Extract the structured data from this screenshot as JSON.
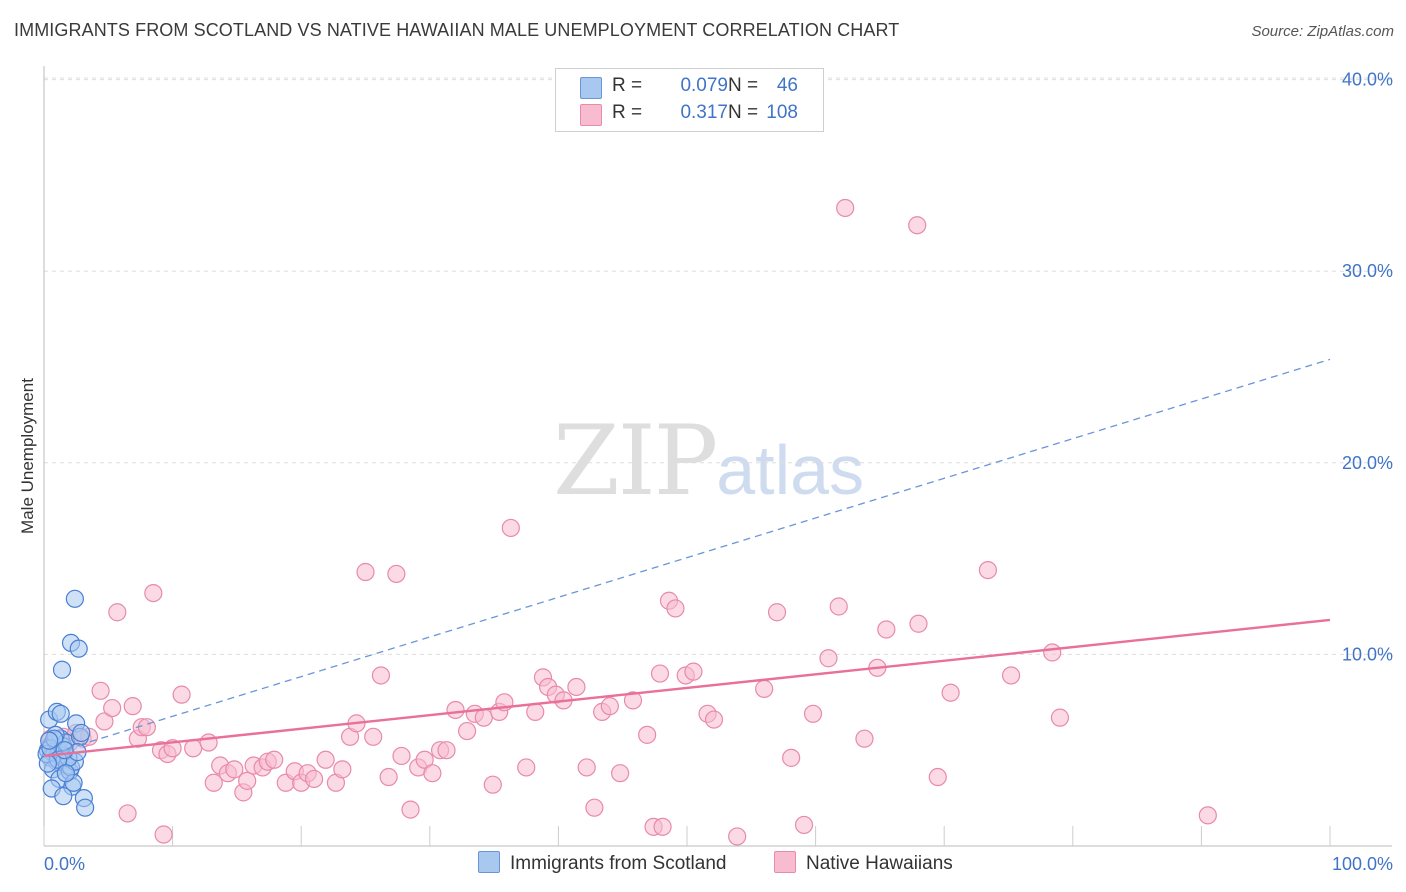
{
  "title": "IMMIGRANTS FROM SCOTLAND VS NATIVE HAWAIIAN MALE UNEMPLOYMENT CORRELATION CHART",
  "source": "Source: ZipAtlas.com",
  "watermark": {
    "zip": "ZIP",
    "atlas": "atlas"
  },
  "colors": {
    "blue_fill": "#a8c8f0",
    "blue_stroke": "#4a7fd4",
    "blue_line": "#6a95d8",
    "pink_fill": "#f7bcd0",
    "pink_stroke": "#e88aaa",
    "pink_line": "#e8709a",
    "axis_text": "#3f74c8",
    "grid": "#dddddd"
  },
  "legend": {
    "rows": [
      {
        "r_label": "R =",
        "r_value": "0.079",
        "n_label": "N =",
        "n_value": "46",
        "color": "#a8c8f0",
        "stroke": "#6a95d8"
      },
      {
        "r_label": "R =",
        "r_value": "0.317",
        "n_label": "N =",
        "n_value": "108",
        "color": "#f7bcd0",
        "stroke": "#e88aaa"
      }
    ]
  },
  "bottom_legend": [
    {
      "label": "Immigrants from Scotland",
      "color": "#a8c8f0",
      "stroke": "#6a95d8"
    },
    {
      "label": "Native Hawaiians",
      "color": "#f7bcd0",
      "stroke": "#e88aaa"
    }
  ],
  "chart_data": {
    "type": "scatter",
    "title": "IMMIGRANTS FROM SCOTLAND VS NATIVE HAWAIIAN MALE UNEMPLOYMENT CORRELATION CHART",
    "xlabel": "",
    "ylabel": "Male Unemployment",
    "xlim": [
      0,
      100
    ],
    "ylim": [
      0,
      42
    ],
    "x_tick_labels": [
      {
        "value": 0,
        "label": "0.0%"
      },
      {
        "value": 100,
        "label": "100.0%"
      }
    ],
    "y_tick_labels": [
      {
        "value": 10,
        "label": "10.0%"
      },
      {
        "value": 20,
        "label": "20.0%"
      },
      {
        "value": 30,
        "label": "30.0%"
      },
      {
        "value": 40,
        "label": "40.0%"
      }
    ],
    "x_minor_ticks": [
      0,
      10,
      20,
      30,
      40,
      50,
      60,
      70,
      80,
      90,
      100
    ],
    "grid": true,
    "series": [
      {
        "name": "Immigrants from Scotland",
        "R": 0.079,
        "N": 46,
        "trend": {
          "x": [
            0,
            100
          ],
          "y": [
            4.7,
            25.4
          ],
          "style": "dashed"
        },
        "points": [
          [
            0.3,
            5.0
          ],
          [
            0.5,
            4.6
          ],
          [
            0.6,
            5.3
          ],
          [
            0.8,
            4.8
          ],
          [
            0.9,
            5.5
          ],
          [
            1.0,
            4.4
          ],
          [
            1.1,
            5.1
          ],
          [
            1.2,
            4.9
          ],
          [
            1.3,
            5.6
          ],
          [
            1.4,
            4.7
          ],
          [
            0.4,
            6.6
          ],
          [
            0.7,
            4.0
          ],
          [
            1.0,
            7.0
          ],
          [
            1.2,
            3.5
          ],
          [
            1.5,
            5.2
          ],
          [
            1.6,
            4.5
          ],
          [
            1.7,
            5.4
          ],
          [
            1.8,
            4.2
          ],
          [
            2.0,
            3.9
          ],
          [
            2.1,
            4.1
          ],
          [
            2.2,
            3.1
          ],
          [
            2.4,
            4.4
          ],
          [
            2.5,
            6.4
          ],
          [
            0.6,
            3.0
          ],
          [
            1.5,
            2.6
          ],
          [
            2.8,
            5.7
          ],
          [
            1.4,
            9.2
          ],
          [
            2.1,
            10.6
          ],
          [
            2.7,
            10.3
          ],
          [
            2.4,
            12.9
          ],
          [
            3.1,
            2.5
          ],
          [
            3.2,
            2.0
          ],
          [
            0.2,
            4.8
          ],
          [
            0.9,
            5.8
          ],
          [
            1.9,
            4.6
          ],
          [
            2.3,
            3.3
          ],
          [
            0.5,
            5.1
          ],
          [
            1.1,
            4.5
          ],
          [
            0.3,
            4.3
          ],
          [
            0.8,
            5.6
          ],
          [
            1.3,
            6.9
          ],
          [
            1.7,
            3.8
          ],
          [
            2.6,
            4.9
          ],
          [
            0.4,
            5.5
          ],
          [
            1.6,
            5.0
          ],
          [
            2.9,
            5.9
          ]
        ]
      },
      {
        "name": "Native Hawaiians",
        "R": 0.317,
        "N": 108,
        "trend": {
          "x": [
            0,
            100
          ],
          "y": [
            4.7,
            11.8
          ],
          "style": "solid"
        },
        "points": [
          [
            0.5,
            5.6
          ],
          [
            1.0,
            5.0
          ],
          [
            1.5,
            5.7
          ],
          [
            2.0,
            5.4
          ],
          [
            2.5,
            5.9
          ],
          [
            3.0,
            5.6
          ],
          [
            3.5,
            5.7
          ],
          [
            4.4,
            8.1
          ],
          [
            4.7,
            6.5
          ],
          [
            5.3,
            7.2
          ],
          [
            5.7,
            12.2
          ],
          [
            6.5,
            1.7
          ],
          [
            6.9,
            7.3
          ],
          [
            7.3,
            5.6
          ],
          [
            7.6,
            6.2
          ],
          [
            8.0,
            6.2
          ],
          [
            8.5,
            13.2
          ],
          [
            9.1,
            5.0
          ],
          [
            9.6,
            4.8
          ],
          [
            10.0,
            5.1
          ],
          [
            10.7,
            7.9
          ],
          [
            11.6,
            5.1
          ],
          [
            12.8,
            5.4
          ],
          [
            13.2,
            3.3
          ],
          [
            13.7,
            4.2
          ],
          [
            14.3,
            3.8
          ],
          [
            15.5,
            2.8
          ],
          [
            15.8,
            3.4
          ],
          [
            16.3,
            4.2
          ],
          [
            17.0,
            4.1
          ],
          [
            17.4,
            4.4
          ],
          [
            17.9,
            4.5
          ],
          [
            18.8,
            3.3
          ],
          [
            19.5,
            3.9
          ],
          [
            20.0,
            3.3
          ],
          [
            20.5,
            3.8
          ],
          [
            21.0,
            3.5
          ],
          [
            21.9,
            4.5
          ],
          [
            22.7,
            3.3
          ],
          [
            23.2,
            4.0
          ],
          [
            23.8,
            5.7
          ],
          [
            24.3,
            6.4
          ],
          [
            25.0,
            14.3
          ],
          [
            25.6,
            5.7
          ],
          [
            26.2,
            8.9
          ],
          [
            26.8,
            3.6
          ],
          [
            27.4,
            14.2
          ],
          [
            27.8,
            4.7
          ],
          [
            28.5,
            1.9
          ],
          [
            29.1,
            4.1
          ],
          [
            29.6,
            4.5
          ],
          [
            30.2,
            3.8
          ],
          [
            30.8,
            5.0
          ],
          [
            31.3,
            5.0
          ],
          [
            32.0,
            7.1
          ],
          [
            32.9,
            6.0
          ],
          [
            33.5,
            6.9
          ],
          [
            34.2,
            6.7
          ],
          [
            34.9,
            3.2
          ],
          [
            35.4,
            7.0
          ],
          [
            35.8,
            7.5
          ],
          [
            36.3,
            16.6
          ],
          [
            37.5,
            4.1
          ],
          [
            38.2,
            7.0
          ],
          [
            38.8,
            8.8
          ],
          [
            39.2,
            8.3
          ],
          [
            39.8,
            7.9
          ],
          [
            40.4,
            7.6
          ],
          [
            41.4,
            8.3
          ],
          [
            42.2,
            4.1
          ],
          [
            42.8,
            2.0
          ],
          [
            43.4,
            7.0
          ],
          [
            44.0,
            7.3
          ],
          [
            44.8,
            3.8
          ],
          [
            45.8,
            7.6
          ],
          [
            46.9,
            5.8
          ],
          [
            47.4,
            1.0
          ],
          [
            47.9,
            9.0
          ],
          [
            48.1,
            1.0
          ],
          [
            48.6,
            12.8
          ],
          [
            49.1,
            12.4
          ],
          [
            49.9,
            8.9
          ],
          [
            50.5,
            9.1
          ],
          [
            51.6,
            6.9
          ],
          [
            52.1,
            6.6
          ],
          [
            53.9,
            0.5
          ],
          [
            56.0,
            8.2
          ],
          [
            57.0,
            12.2
          ],
          [
            58.1,
            4.6
          ],
          [
            59.1,
            1.1
          ],
          [
            59.8,
            6.9
          ],
          [
            61.0,
            9.8
          ],
          [
            61.8,
            12.5
          ],
          [
            62.3,
            33.3
          ],
          [
            63.8,
            5.6
          ],
          [
            64.8,
            9.3
          ],
          [
            65.5,
            11.3
          ],
          [
            67.9,
            32.4
          ],
          [
            68.0,
            11.6
          ],
          [
            69.5,
            3.6
          ],
          [
            70.5,
            8.0
          ],
          [
            73.4,
            14.4
          ],
          [
            75.2,
            8.9
          ],
          [
            78.4,
            10.1
          ],
          [
            79.0,
            6.7
          ],
          [
            90.5,
            1.6
          ],
          [
            9.3,
            0.6
          ],
          [
            14.8,
            4.0
          ]
        ]
      }
    ]
  }
}
